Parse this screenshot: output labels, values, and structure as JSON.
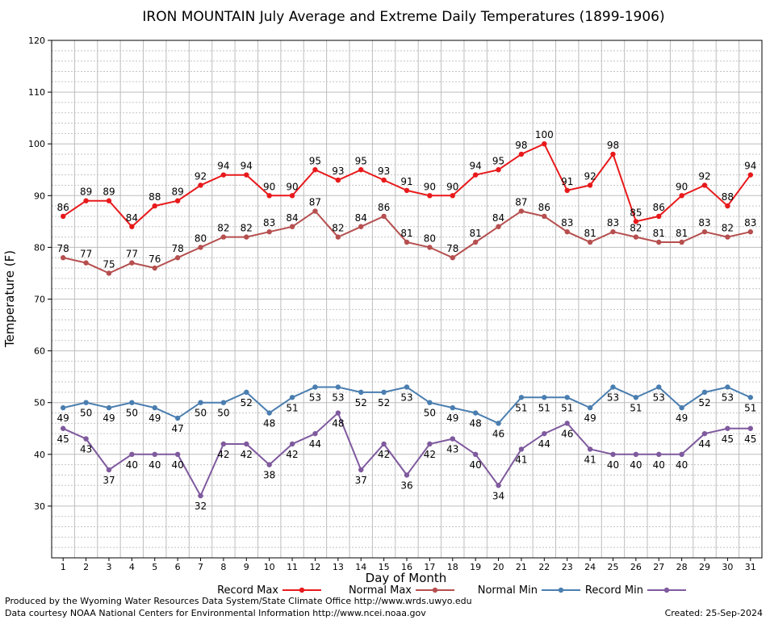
{
  "chart_data": {
    "type": "line",
    "title": "IRON MOUNTAIN July Average and Extreme Daily Temperatures (1899-1906)",
    "xlabel": "Day of Month",
    "ylabel": "Temperature (F)",
    "ylim": [
      20,
      120
    ],
    "yticks": [
      30,
      40,
      50,
      60,
      70,
      80,
      90,
      100,
      110,
      120
    ],
    "x": [
      1,
      2,
      3,
      4,
      5,
      6,
      7,
      8,
      9,
      10,
      11,
      12,
      13,
      14,
      15,
      16,
      17,
      18,
      19,
      20,
      21,
      22,
      23,
      24,
      25,
      26,
      27,
      28,
      29,
      30,
      31
    ],
    "grid": true,
    "legend_position": "bottom",
    "series": [
      {
        "name": "Record Max",
        "color": "#e8191b",
        "values": [
          86,
          89,
          89,
          84,
          88,
          89,
          92,
          94,
          94,
          90,
          90,
          95,
          93,
          95,
          93,
          91,
          90,
          90,
          94,
          95,
          98,
          100,
          91,
          92,
          98,
          85,
          86,
          90,
          92,
          88,
          94
        ]
      },
      {
        "name": "Normal Max",
        "color": "#b64f4f",
        "values": [
          78,
          77,
          75,
          77,
          76,
          78,
          80,
          82,
          82,
          83,
          84,
          87,
          82,
          84,
          86,
          81,
          80,
          78,
          81,
          84,
          87,
          86,
          83,
          81,
          83,
          82,
          81,
          81,
          83,
          82,
          83
        ]
      },
      {
        "name": "Normal Min",
        "color": "#4a7eb0",
        "values": [
          49,
          50,
          49,
          50,
          49,
          47,
          50,
          50,
          52,
          48,
          51,
          53,
          53,
          52,
          52,
          53,
          50,
          49,
          48,
          46,
          51,
          51,
          51,
          49,
          53,
          51,
          53,
          49,
          52,
          53,
          51
        ]
      },
      {
        "name": "Record Min",
        "color": "#7f5a9e",
        "values": [
          45,
          43,
          37,
          40,
          40,
          40,
          32,
          42,
          42,
          38,
          42,
          44,
          48,
          37,
          42,
          36,
          42,
          43,
          40,
          34,
          41,
          44,
          46,
          41,
          40,
          40,
          40,
          40,
          44,
          45,
          45
        ]
      }
    ]
  },
  "footer": {
    "produced_by": "Produced by the Wyoming Water Resources Data System/State Climate Office http://www.wrds.uwyo.edu",
    "courtesy": "Data courtesy NOAA National Centers for Environmental Information http://www.ncei.noaa.gov",
    "created": "Created:  25-Sep-2024"
  }
}
